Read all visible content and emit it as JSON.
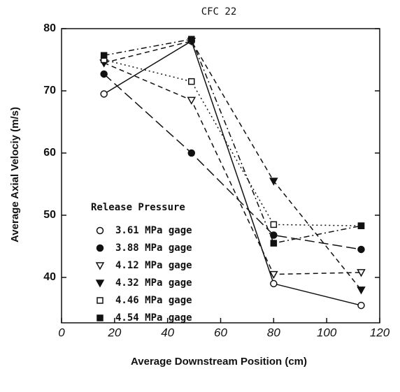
{
  "chart_data": {
    "type": "line",
    "title": "CFC 22",
    "x_label": "Average Downstream Position (cm)",
    "y_label": "Average Axial Velociy (m/s)",
    "legend_title": "Release Pressure",
    "x": [
      16,
      49,
      80,
      113
    ],
    "xlim": [
      0,
      120
    ],
    "xticks": [
      0,
      20,
      40,
      60,
      80,
      100,
      120
    ],
    "ylim": [
      32.7,
      80
    ],
    "yticks": [
      40,
      50,
      60,
      70,
      80
    ],
    "series": [
      {
        "name": "3.61 MPa gage",
        "color": "#111111",
        "marker": "circle-open",
        "dash": "solid",
        "values": [
          69.5,
          78,
          39,
          35.5
        ]
      },
      {
        "name": "3.88 MPa gage",
        "color": "#111111",
        "marker": "circle-filled",
        "dash": "long-dash",
        "values": [
          72.7,
          60,
          46.8,
          44.5
        ]
      },
      {
        "name": "4.12 MPa gage",
        "color": "#111111",
        "marker": "triangle-open",
        "dash": "dash",
        "values": [
          74.5,
          68.5,
          40.5,
          40.8
        ]
      },
      {
        "name": "4.32 MPa gage",
        "color": "#111111",
        "marker": "triangle-filled",
        "dash": "dash",
        "values": [
          74.5,
          78,
          55.5,
          38
        ]
      },
      {
        "name": "4.46 MPa gage",
        "color": "#111111",
        "marker": "square-open",
        "dash": "dot",
        "values": [
          75,
          71.5,
          48.5,
          48.3
        ]
      },
      {
        "name": "4.54 MPa gage",
        "color": "#111111",
        "marker": "square-filled",
        "dash": "dash-dot",
        "values": [
          75.7,
          78.3,
          45.5,
          48.3
        ]
      }
    ]
  }
}
